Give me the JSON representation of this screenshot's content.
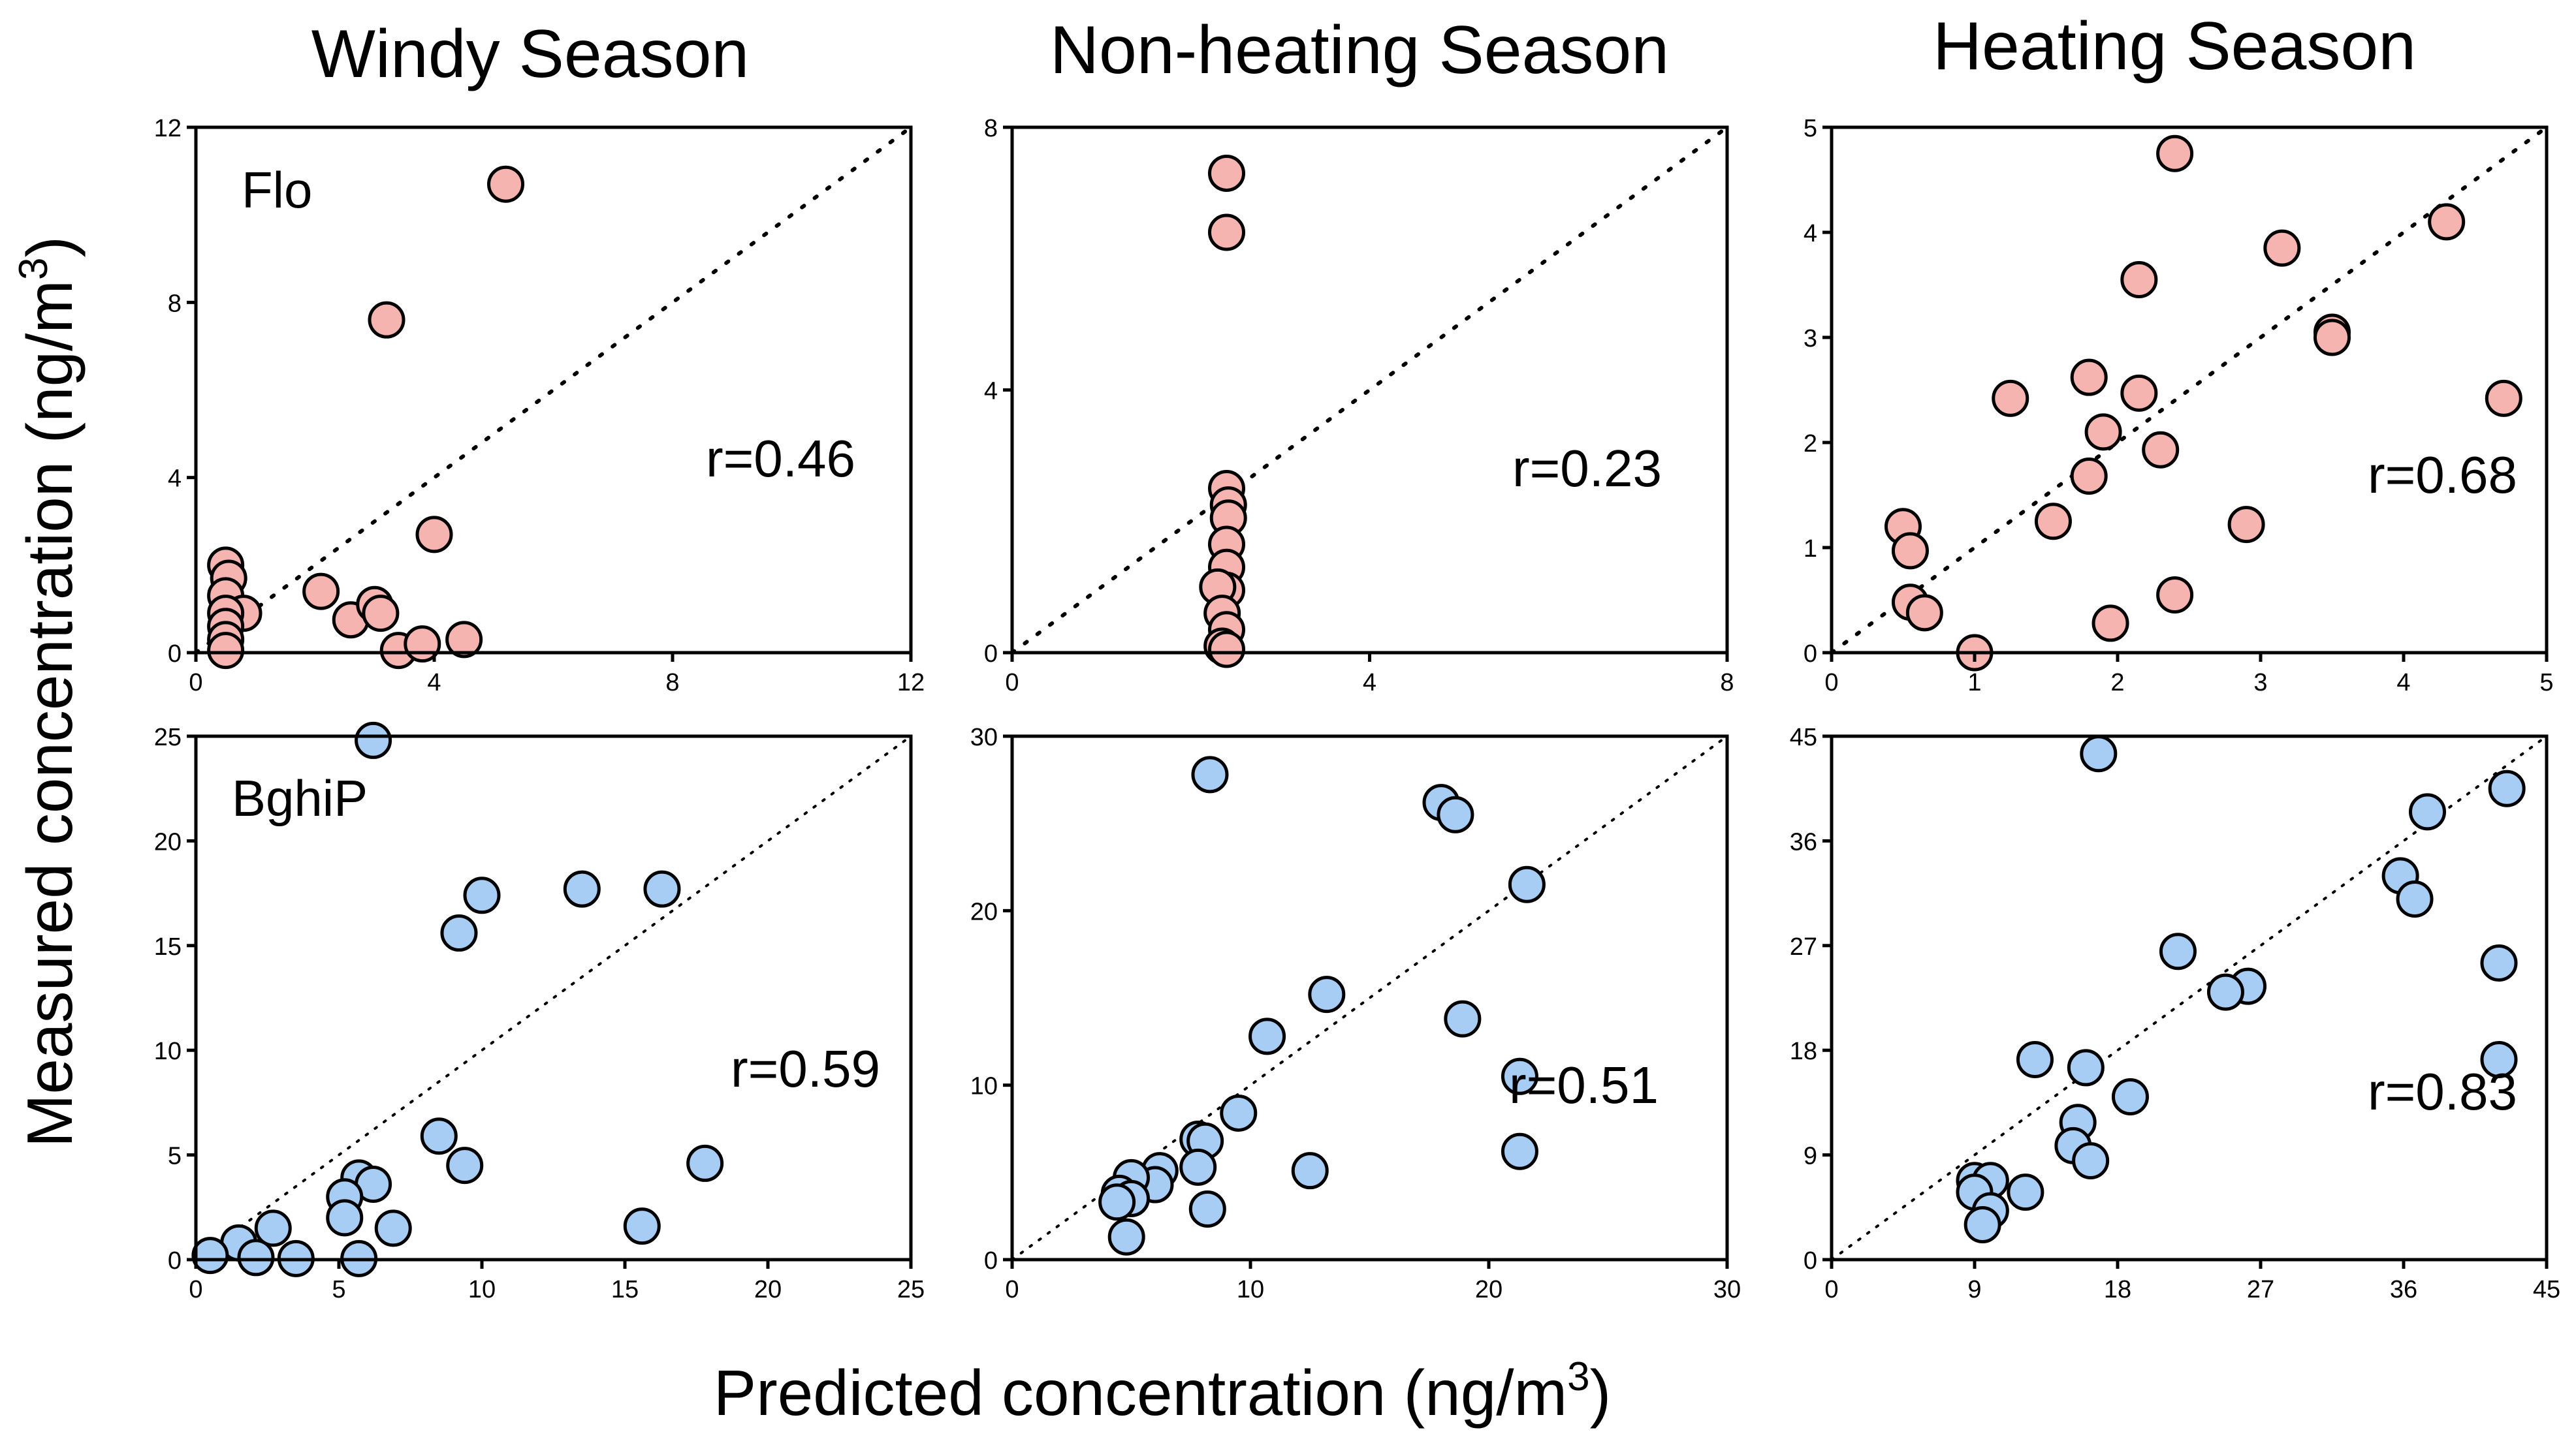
{
  "titles": [
    "Windy Season",
    "Non-heating Season",
    "Heating Season"
  ],
  "xlabel": "Predicted concentration  (ng/m",
  "xlabel_sup": "3",
  "xlabel_end": ")",
  "ylabel": "Measured concentration  (ng/m",
  "ylabel_sup": "3",
  "ylabel_end": ")",
  "colors": {
    "flo_fill": "#f6b4b1",
    "bghip_fill": "#a7cdf4",
    "stroke": "#000000"
  },
  "chart_data": [
    {
      "type": "scatter",
      "compound": "Flo",
      "season": "Windy Season",
      "r_label": "r=0.46",
      "xlim": [
        0,
        12
      ],
      "ylim": [
        0,
        12
      ],
      "xticks": [
        "0",
        "4",
        "8",
        "12"
      ],
      "yticks": [
        "0",
        "4",
        "8",
        "12"
      ],
      "points": [
        [
          5.2,
          10.7
        ],
        [
          3.2,
          7.6
        ],
        [
          4.0,
          2.7
        ],
        [
          0.5,
          2.0
        ],
        [
          0.55,
          1.7
        ],
        [
          0.5,
          1.3
        ],
        [
          0.8,
          0.9
        ],
        [
          0.5,
          0.9
        ],
        [
          0.5,
          0.6
        ],
        [
          0.5,
          0.3
        ],
        [
          0.5,
          0.05
        ],
        [
          2.1,
          1.4
        ],
        [
          2.6,
          0.75
        ],
        [
          3.0,
          1.1
        ],
        [
          3.1,
          0.9
        ],
        [
          3.4,
          0.05
        ],
        [
          3.8,
          0.2
        ],
        [
          4.5,
          0.3
        ]
      ]
    },
    {
      "type": "scatter",
      "compound": "Flo",
      "season": "Non-heating Season",
      "r_label": "r=0.23",
      "xlim": [
        0,
        8
      ],
      "ylim": [
        0,
        8
      ],
      "xticks": [
        "0",
        "4",
        "8"
      ],
      "yticks": [
        "0",
        "4",
        "8"
      ],
      "points": [
        [
          2.4,
          7.3
        ],
        [
          2.4,
          6.4
        ],
        [
          2.4,
          2.5
        ],
        [
          2.42,
          2.25
        ],
        [
          2.42,
          2.05
        ],
        [
          2.4,
          1.65
        ],
        [
          2.4,
          1.3
        ],
        [
          2.4,
          0.95
        ],
        [
          2.3,
          1.0
        ],
        [
          2.35,
          0.6
        ],
        [
          2.4,
          0.35
        ],
        [
          2.35,
          0.1
        ],
        [
          2.4,
          0.05
        ]
      ]
    },
    {
      "type": "scatter",
      "compound": "Flo",
      "season": "Heating Season",
      "r_label": "r=0.68",
      "xlim": [
        0,
        5
      ],
      "ylim": [
        0,
        5
      ],
      "xticks": [
        "0",
        "1",
        "2",
        "3",
        "4",
        "5"
      ],
      "yticks": [
        "0",
        "1",
        "2",
        "3",
        "4",
        "5"
      ],
      "points": [
        [
          2.4,
          4.75
        ],
        [
          4.3,
          4.1
        ],
        [
          3.15,
          3.85
        ],
        [
          2.15,
          3.55
        ],
        [
          3.5,
          3.05
        ],
        [
          3.5,
          3.0
        ],
        [
          1.8,
          2.62
        ],
        [
          2.15,
          2.47
        ],
        [
          1.25,
          2.42
        ],
        [
          4.7,
          2.42
        ],
        [
          1.9,
          2.1
        ],
        [
          2.3,
          1.93
        ],
        [
          1.8,
          1.68
        ],
        [
          1.55,
          1.25
        ],
        [
          2.9,
          1.22
        ],
        [
          0.5,
          1.2
        ],
        [
          0.55,
          0.97
        ],
        [
          0.55,
          0.48
        ],
        [
          0.65,
          0.38
        ],
        [
          2.4,
          0.55
        ],
        [
          1.95,
          0.28
        ],
        [
          1.0,
          0.0
        ]
      ]
    },
    {
      "type": "scatter",
      "compound": "BghiP",
      "season": "Windy Season",
      "r_label": "r=0.59",
      "xlim": [
        0,
        25
      ],
      "ylim": [
        0,
        25
      ],
      "xticks": [
        "0",
        "5",
        "10",
        "15",
        "20",
        "25"
      ],
      "yticks": [
        "0",
        "5",
        "10",
        "15",
        "20",
        "25"
      ],
      "points": [
        [
          6.2,
          24.8
        ],
        [
          10.0,
          17.4
        ],
        [
          13.5,
          17.7
        ],
        [
          16.3,
          17.7
        ],
        [
          9.2,
          15.6
        ],
        [
          8.5,
          5.9
        ],
        [
          9.4,
          4.5
        ],
        [
          17.8,
          4.6
        ],
        [
          5.7,
          3.9
        ],
        [
          6.2,
          3.6
        ],
        [
          5.2,
          3.0
        ],
        [
          5.2,
          2.0
        ],
        [
          6.9,
          1.5
        ],
        [
          15.6,
          1.6
        ],
        [
          2.7,
          1.5
        ],
        [
          1.5,
          0.8
        ],
        [
          0.5,
          0.2
        ],
        [
          2.1,
          0.1
        ],
        [
          3.5,
          0.05
        ],
        [
          5.7,
          0.05
        ]
      ]
    },
    {
      "type": "scatter",
      "compound": "BghiP",
      "season": "Non-heating Season",
      "r_label": "r=0.51",
      "xlim": [
        0,
        30
      ],
      "ylim": [
        0,
        30
      ],
      "xticks": [
        "0",
        "10",
        "20",
        "30"
      ],
      "yticks": [
        "0",
        "10",
        "20",
        "30"
      ],
      "points": [
        [
          8.3,
          27.8
        ],
        [
          18.0,
          26.2
        ],
        [
          18.6,
          25.5
        ],
        [
          21.6,
          21.5
        ],
        [
          13.2,
          15.2
        ],
        [
          10.7,
          12.8
        ],
        [
          18.9,
          13.8
        ],
        [
          21.3,
          10.5
        ],
        [
          21.3,
          6.2
        ],
        [
          9.5,
          8.4
        ],
        [
          7.8,
          6.9
        ],
        [
          8.1,
          6.8
        ],
        [
          7.8,
          5.3
        ],
        [
          6.2,
          5.1
        ],
        [
          6.0,
          4.3
        ],
        [
          5.0,
          4.7
        ],
        [
          4.5,
          3.8
        ],
        [
          5.0,
          3.5
        ],
        [
          4.4,
          3.3
        ],
        [
          8.2,
          2.9
        ],
        [
          12.5,
          5.1
        ],
        [
          4.8,
          1.3
        ]
      ]
    },
    {
      "type": "scatter",
      "compound": "BghiP",
      "season": "Heating Season",
      "r_label": "r=0.83",
      "xlim": [
        0,
        45
      ],
      "ylim": [
        0,
        45
      ],
      "xticks": [
        "0",
        "9",
        "18",
        "27",
        "36",
        "45"
      ],
      "yticks": [
        "0",
        "9",
        "18",
        "27",
        "36",
        "45"
      ],
      "points": [
        [
          16.8,
          43.5
        ],
        [
          42.5,
          40.5
        ],
        [
          37.5,
          38.5
        ],
        [
          35.8,
          33.0
        ],
        [
          36.7,
          31.0
        ],
        [
          21.8,
          26.5
        ],
        [
          42.0,
          25.5
        ],
        [
          26.2,
          23.5
        ],
        [
          24.8,
          23.0
        ],
        [
          12.8,
          17.2
        ],
        [
          16.0,
          16.5
        ],
        [
          42.0,
          17.2
        ],
        [
          18.8,
          14.0
        ],
        [
          15.5,
          11.8
        ],
        [
          15.2,
          9.8
        ],
        [
          16.3,
          8.5
        ],
        [
          12.2,
          5.8
        ],
        [
          9.0,
          6.8
        ],
        [
          10.0,
          6.8
        ],
        [
          9.0,
          5.8
        ],
        [
          10.0,
          4.2
        ],
        [
          9.5,
          3.0
        ]
      ]
    }
  ]
}
